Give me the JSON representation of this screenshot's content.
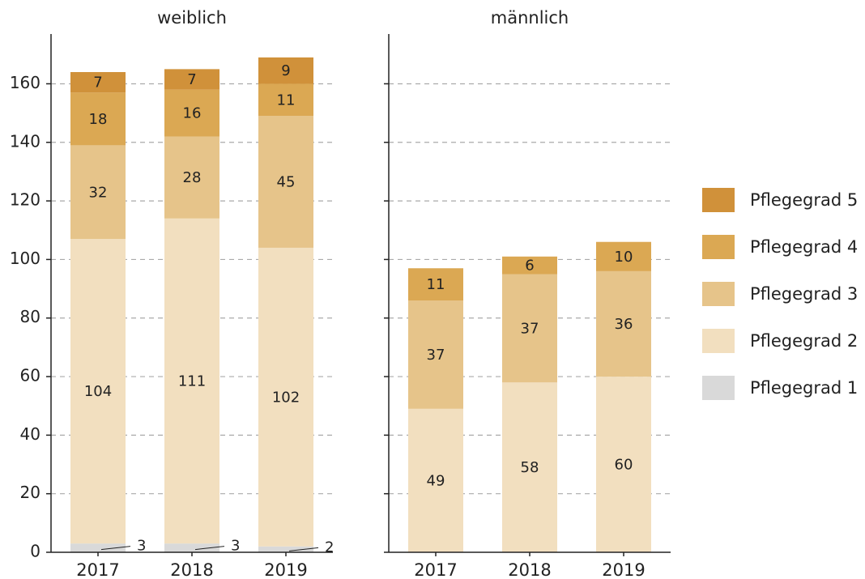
{
  "chart_data": [
    {
      "type": "bar",
      "stacked": true,
      "title": "weiblich",
      "categories": [
        "2017",
        "2018",
        "2019"
      ],
      "ylim": [
        0,
        177
      ],
      "yticks": [
        0,
        20,
        40,
        60,
        80,
        100,
        120,
        140,
        160
      ],
      "grid": true,
      "series": [
        {
          "name": "Pflegegrad 1",
          "color": "#d9d9d9",
          "values": [
            3,
            3,
            2
          ]
        },
        {
          "name": "Pflegegrad 2",
          "color": "#f2dfbf",
          "values": [
            104,
            111,
            102
          ]
        },
        {
          "name": "Pflegegrad 3",
          "color": "#e6c48a",
          "values": [
            32,
            28,
            45
          ]
        },
        {
          "name": "Pflegegrad 4",
          "color": "#dba853",
          "values": [
            18,
            16,
            11
          ]
        },
        {
          "name": "Pflegegrad 5",
          "color": "#d0913a",
          "values": [
            7,
            7,
            9
          ]
        }
      ]
    },
    {
      "type": "bar",
      "stacked": true,
      "title": "männlich",
      "categories": [
        "2017",
        "2018",
        "2019"
      ],
      "ylim": [
        0,
        177
      ],
      "yticks": [
        0,
        20,
        40,
        60,
        80,
        100,
        120,
        140,
        160
      ],
      "grid": true,
      "series": [
        {
          "color": "#d9d9d9",
          "values": [
            null,
            null,
            null
          ]
        },
        {
          "color": "#f2dfbf",
          "values": [
            49,
            58,
            60
          ]
        },
        {
          "color": "#e6c48a",
          "values": [
            37,
            37,
            36
          ]
        },
        {
          "color": "#dba853",
          "values": [
            11,
            6,
            10
          ]
        },
        {
          "color": "#d0913a",
          "values": [
            null,
            null,
            null
          ]
        }
      ]
    }
  ]
}
